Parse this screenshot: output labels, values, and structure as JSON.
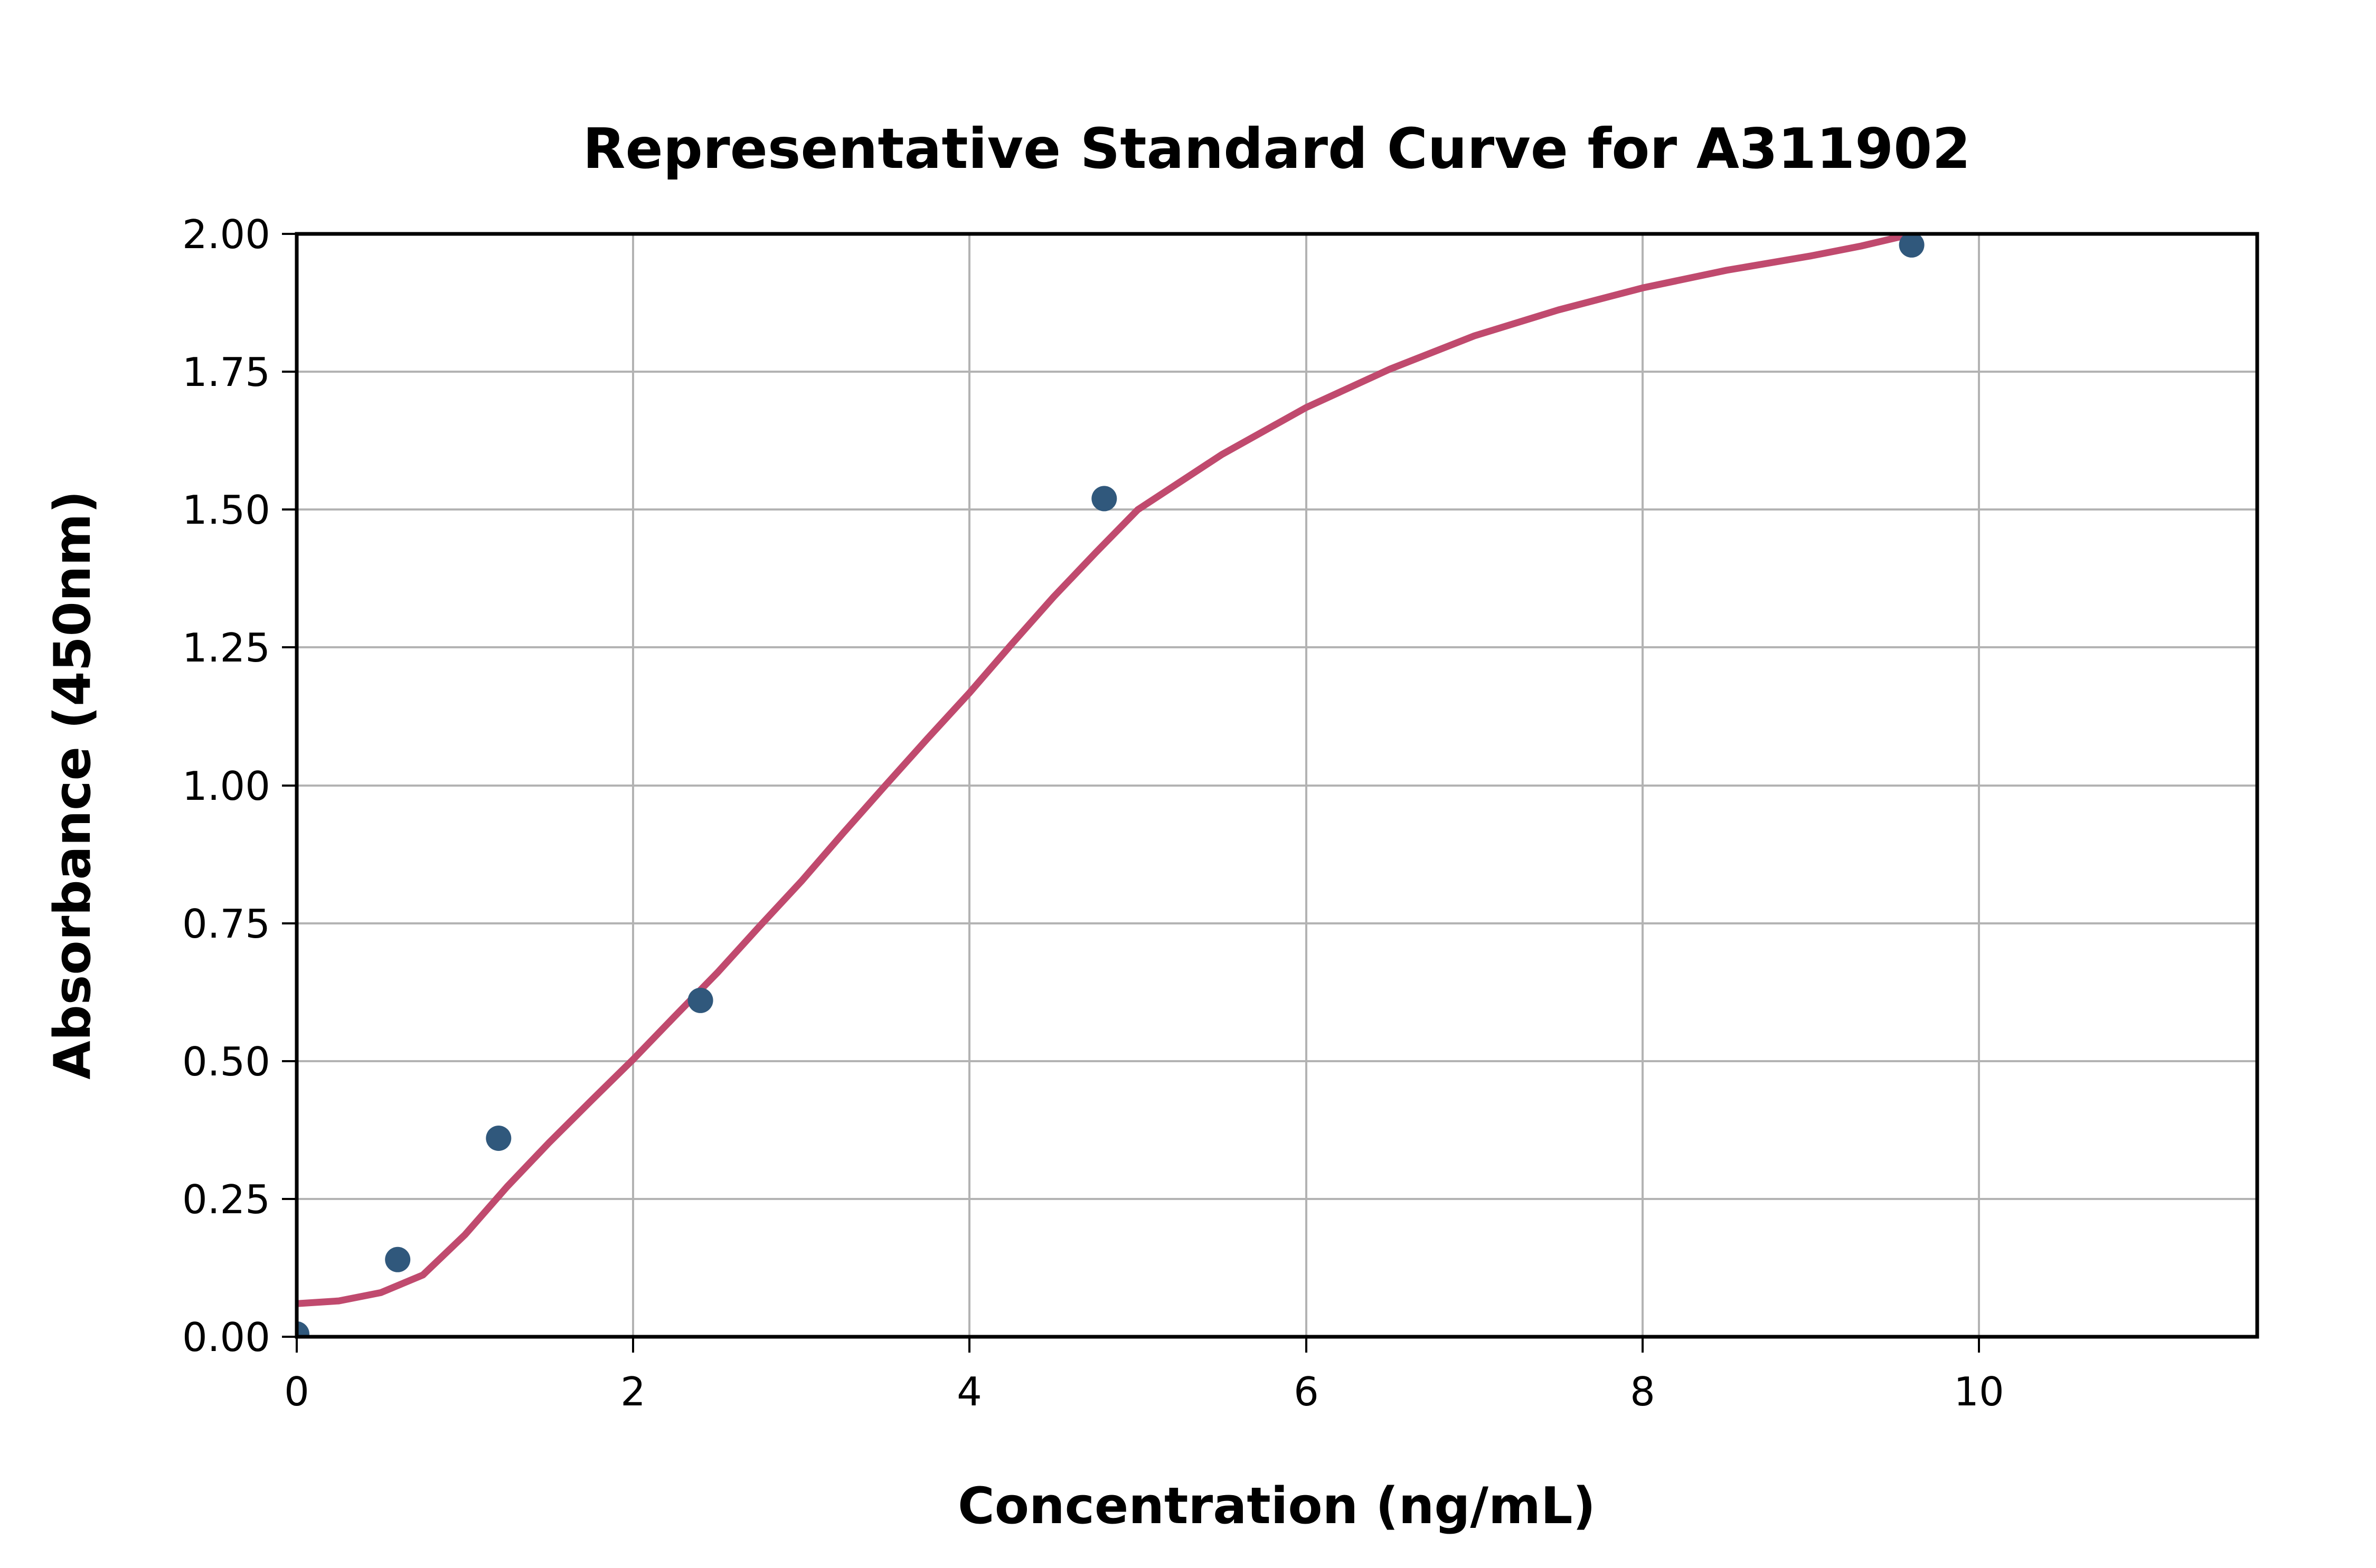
{
  "chart_data": {
    "type": "scatter",
    "title": "Representative Standard Curve for A311902",
    "xlabel": "Concentration (ng/mL)",
    "ylabel": "Absorbance (450nm)",
    "xlim": [
      0,
      11.65
    ],
    "ylim": [
      0,
      2.0
    ],
    "xticks": [
      0,
      2,
      4,
      6,
      8,
      10
    ],
    "xticklabels": [
      "0",
      "2",
      "4",
      "6",
      "8",
      "10"
    ],
    "yticks": [
      0,
      0.25,
      0.5,
      0.75,
      1.0,
      1.25,
      1.5,
      1.75,
      2.0
    ],
    "yticklabels": [
      "0.00",
      "0.25",
      "0.50",
      "0.75",
      "1.00",
      "1.25",
      "1.50",
      "1.75",
      "2.00"
    ],
    "grid": true,
    "legend": "none",
    "points": [
      {
        "x": 0,
        "y": 0.005
      },
      {
        "x": 0.6,
        "y": 0.14
      },
      {
        "x": 1.2,
        "y": 0.36
      },
      {
        "x": 2.4,
        "y": 0.61
      },
      {
        "x": 4.8,
        "y": 1.52
      },
      {
        "x": 9.6,
        "y": 1.98
      }
    ],
    "fit_curve": {
      "x": [
        0,
        0.25,
        0.5,
        0.75,
        1.0,
        1.25,
        1.5,
        1.75,
        2.0,
        2.25,
        2.5,
        2.75,
        3.0,
        3.25,
        3.5,
        3.75,
        4.0,
        4.25,
        4.5,
        4.75,
        5.0,
        5.5,
        6.0,
        6.5,
        7.0,
        7.5,
        8.0,
        8.5,
        9.0,
        9.3,
        9.62
      ],
      "y": [
        0.06,
        0.065,
        0.08,
        0.112,
        0.185,
        0.272,
        0.352,
        0.428,
        0.503,
        0.582,
        0.66,
        0.744,
        0.826,
        0.914,
        1.0,
        1.085,
        1.168,
        1.256,
        1.342,
        1.422,
        1.5,
        1.6,
        1.685,
        1.755,
        1.815,
        1.862,
        1.902,
        1.934,
        1.96,
        1.978,
        2.001
      ]
    },
    "colors": {
      "points": "#30587c",
      "curve": "#c04a6e",
      "grid": "#b3b3b3",
      "axes": "#000000",
      "background": "#ffffff"
    },
    "marker_radius_px": 24
  }
}
